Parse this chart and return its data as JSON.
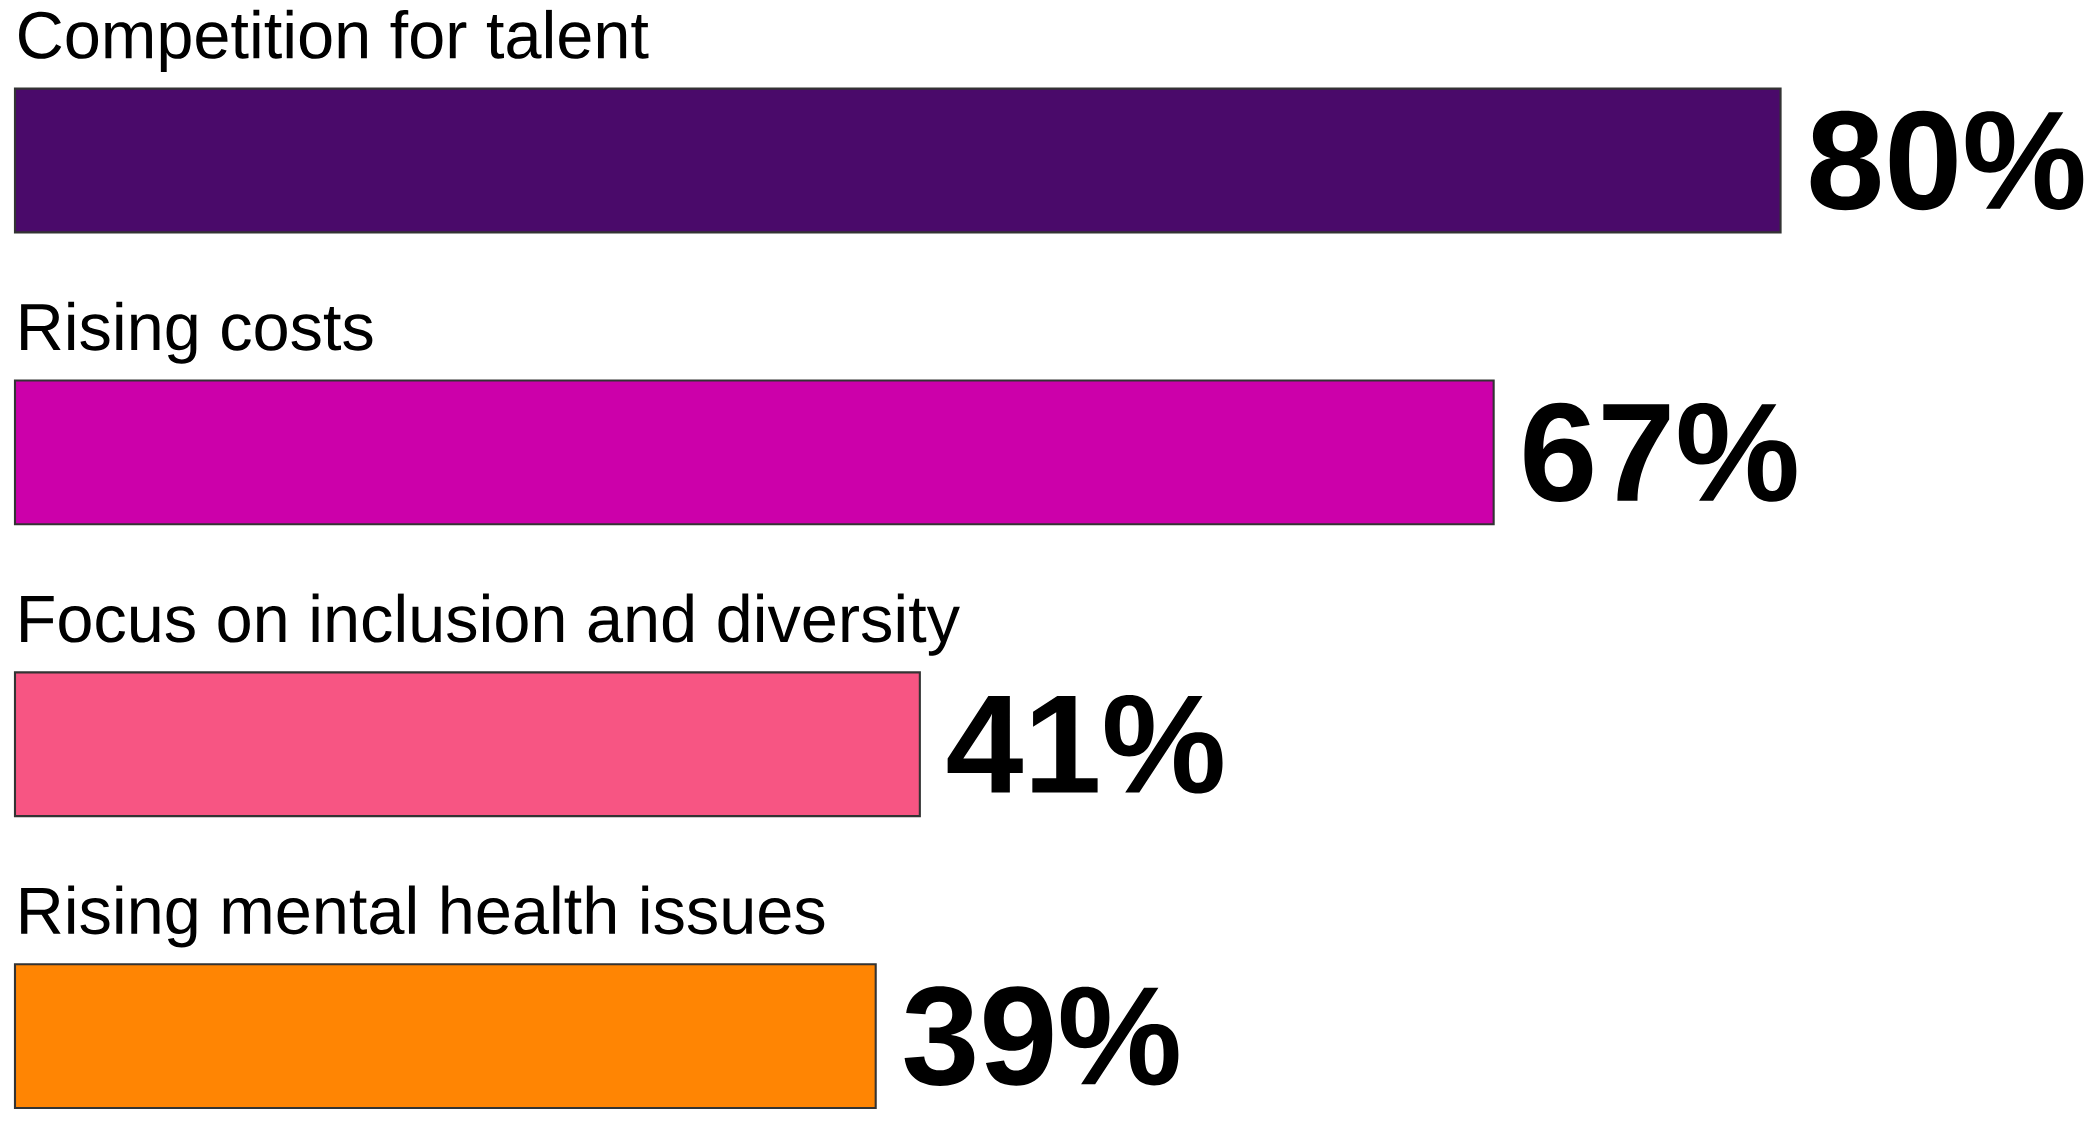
{
  "chart_data": {
    "type": "bar",
    "orientation": "horizontal",
    "categories": [
      "Competition for talent",
      "Rising costs",
      "Focus on inclusion and diversity",
      "Rising mental health issues"
    ],
    "values": [
      80,
      67,
      41,
      39
    ],
    "colors": [
      "#4a0a6a",
      "#cc00aa",
      "#f75583",
      "#ff8503"
    ],
    "value_labels": [
      "80%",
      "67%",
      "41%",
      "39%"
    ]
  }
}
